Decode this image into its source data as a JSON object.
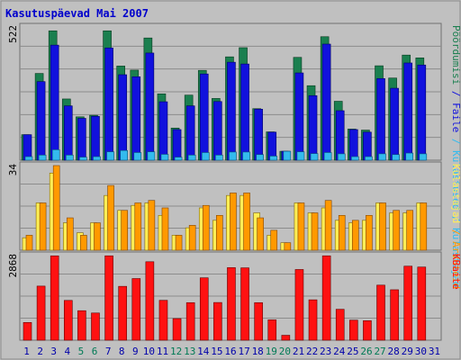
{
  "chart_data": {
    "type": "bar",
    "title": "Kasutuspäevad Mai 2007",
    "categories": [
      "1",
      "2",
      "3",
      "4",
      "5",
      "6",
      "7",
      "8",
      "9",
      "10",
      "11",
      "12",
      "13",
      "14",
      "15",
      "16",
      "17",
      "18",
      "19",
      "20",
      "21",
      "22",
      "23",
      "24",
      "25",
      "26",
      "27",
      "28",
      "29",
      "30",
      "31"
    ],
    "weekend_days": [
      "5",
      "6",
      "12",
      "13",
      "19",
      "20",
      "26",
      "27"
    ],
    "panels": [
      {
        "id": "top",
        "ymax_label": "522",
        "ylim": [
          0,
          522
        ],
        "right_labels": [
          "Külastajad",
          "Külastused",
          "Faile",
          "Pöördumisi"
        ],
        "series": [
          {
            "name": "Pöördumisi",
            "color": "#1a7f4f",
            "values": [
              100,
              340,
              507,
              240,
              170,
              176,
              507,
              369,
              353,
              479,
              260,
              126,
              255,
              352,
              242,
              405,
              441,
              202,
              111,
              35,
              403,
              292,
              484,
              231,
              122,
              118,
              370,
              322,
              412,
              401
            ]
          },
          {
            "name": "Faile",
            "color": "#1111dd",
            "values": [
              100,
              308,
              451,
              213,
              164,
              172,
              440,
              335,
              327,
              420,
              229,
              120,
              213,
              338,
              230,
              384,
              377,
              200,
              110,
              35,
              342,
              253,
              455,
              194,
              120,
              110,
              320,
              282,
              381,
              373
            ]
          },
          {
            "name": "Külastused",
            "color": "#33bbee",
            "values": [
              0,
              0,
              0,
              0,
              0,
              0,
              0,
              0,
              0,
              0,
              0,
              0,
              0,
              0,
              0,
              0,
              0,
              0,
              0,
              0,
              0,
              0,
              0,
              0,
              0,
              0,
              0,
              0,
              0,
              0
            ]
          },
          {
            "name": "Külastajad",
            "color": "#33bbee",
            "values": [
              14,
              20,
              41,
              20,
              12,
              14,
              33,
              38,
              30,
              33,
              23,
              12,
              20,
              30,
              20,
              32,
              32,
              22,
              16,
              35,
              33,
              26,
              30,
              25,
              14,
              14,
              25,
              22,
              28,
              25
            ]
          }
        ]
      },
      {
        "id": "middle",
        "ymax_label": "34",
        "ylim": [
          0,
          34
        ],
        "right_labels": [
          "Arvuteid",
          "Külastajad"
        ],
        "series": [
          {
            "name": "Külastajad",
            "color": "#ffee55",
            "values": [
              5,
              19,
              31,
              11,
              7,
              11,
              22,
              16,
              18,
              19,
              14,
              6,
              9,
              17,
              12,
              22,
              22,
              15,
              6,
              3,
              19,
              15,
              17,
              12,
              11,
              12,
              19,
              15,
              15,
              19
            ]
          },
          {
            "name": "Arvuteid",
            "color": "#ff9900",
            "values": [
              6,
              19,
              34,
              13,
              6,
              11,
              26,
              16,
              19,
              20,
              17,
              6,
              10,
              18,
              14,
              23,
              23,
              13,
              8,
              3,
              19,
              15,
              20,
              14,
              12,
              14,
              19,
              16,
              16,
              19
            ]
          }
        ]
      },
      {
        "id": "bottom",
        "ymax_label": "2868",
        "ylim": [
          0,
          2868
        ],
        "right_labels": [
          "KBaite"
        ],
        "series": [
          {
            "name": "KBaite",
            "color": "#ff1111",
            "values": [
              601,
              1834,
              2859,
              1349,
              1000,
              922,
              2860,
              1826,
              2090,
              2660,
              1352,
              732,
              1273,
              2115,
              1278,
              2460,
              2453,
              1273,
              691,
              167,
              2397,
              1369,
              2860,
              1048,
              681,
              661,
              1867,
              1710,
              2510,
              2480
            ]
          }
        ]
      }
    ],
    "colors": {
      "background": "#c0c0c0",
      "frame": "#b8b8b8",
      "title": "#0000cc",
      "grid": "#8c8c8c",
      "weekday_label": "#0000aa",
      "weekend_label": "#007a55"
    }
  }
}
